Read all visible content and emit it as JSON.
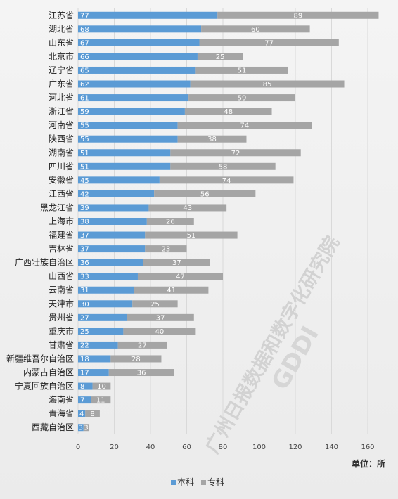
{
  "chart_data": {
    "type": "bar",
    "orientation": "horizontal",
    "stacked": true,
    "categories": [
      "江苏省",
      "湖北省",
      "山东省",
      "北京市",
      "辽宁省",
      "广东省",
      "河北省",
      "浙江省",
      "河南省",
      "陕西省",
      "湖南省",
      "四川省",
      "安徽省",
      "江西省",
      "黑龙江省",
      "上海市",
      "福建省",
      "吉林省",
      "广西壮族自治区",
      "山西省",
      "云南省",
      "天津市",
      "贵州省",
      "重庆市",
      "甘肃省",
      "新疆维吾尔自治区",
      "内蒙古自治区",
      "宁夏回族自治区",
      "海南省",
      "青海省",
      "西藏自治区"
    ],
    "series": [
      {
        "name": "本科",
        "color": "#5b9bd5",
        "values": [
          77,
          68,
          67,
          66,
          65,
          62,
          61,
          59,
          55,
          55,
          51,
          51,
          45,
          42,
          39,
          38,
          37,
          37,
          36,
          33,
          31,
          30,
          27,
          25,
          22,
          18,
          17,
          8,
          7,
          4,
          3
        ]
      },
      {
        "name": "专科",
        "color": "#a5a5a5",
        "values": [
          89,
          60,
          77,
          25,
          51,
          85,
          59,
          48,
          74,
          38,
          72,
          58,
          74,
          56,
          43,
          26,
          51,
          23,
          37,
          47,
          41,
          25,
          37,
          40,
          27,
          28,
          36,
          10,
          11,
          8,
          3
        ]
      }
    ],
    "xlim": [
      0,
      160
    ],
    "xticks": [
      "0",
      "20",
      "40",
      "60",
      "80",
      "100",
      "120",
      "140",
      "160"
    ],
    "unit_label": "单位：所",
    "legend_position": "bottom",
    "watermark": "广州日报数据和数字化研究院",
    "watermark_logo": "GDDI"
  }
}
